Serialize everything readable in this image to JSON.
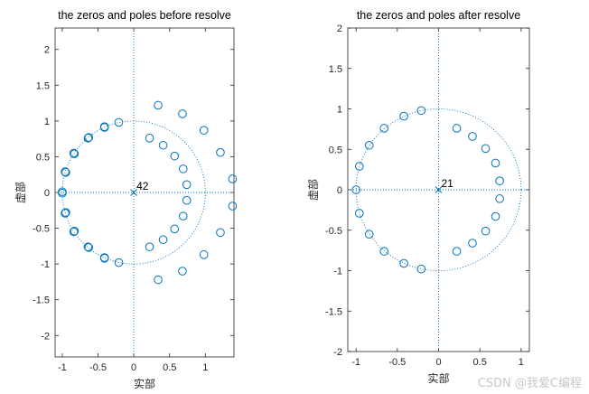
{
  "chart_data": [
    {
      "type": "scatter",
      "title": "the zeros and poles before resolve",
      "xlabel": "实部",
      "ylabel": "虚部",
      "xlim": [
        -1.1,
        1.4
      ],
      "ylim": [
        -2.3,
        2.3
      ],
      "xticks": [
        -1,
        -0.5,
        0,
        0.5,
        1
      ],
      "yticks": [
        -2,
        -1.5,
        -1,
        -0.5,
        0,
        0.5,
        1,
        1.5,
        2
      ],
      "unit_circle": true,
      "zeros": [
        [
          1.38,
          0.19
        ],
        [
          1.21,
          0.56
        ],
        [
          0.98,
          0.87
        ],
        [
          0.68,
          1.1
        ],
        [
          0.34,
          1.22
        ],
        [
          1.38,
          -0.19
        ],
        [
          1.21,
          -0.56
        ],
        [
          0.98,
          -0.87
        ],
        [
          0.68,
          -1.1
        ],
        [
          0.34,
          -1.22
        ],
        [
          0.22,
          0.76
        ],
        [
          0.41,
          0.66
        ],
        [
          0.57,
          0.51
        ],
        [
          0.69,
          0.33
        ],
        [
          0.74,
          0.11
        ],
        [
          0.22,
          -0.76
        ],
        [
          0.41,
          -0.66
        ],
        [
          0.57,
          -0.51
        ],
        [
          0.69,
          -0.33
        ],
        [
          0.74,
          -0.11
        ],
        [
          -0.21,
          0.98
        ],
        [
          -0.41,
          0.91
        ],
        [
          -0.41,
          0.92
        ],
        [
          -0.63,
          0.77
        ],
        [
          -0.64,
          0.76
        ],
        [
          -0.84,
          0.55
        ],
        [
          -0.83,
          0.54
        ],
        [
          -0.96,
          0.29
        ],
        [
          -0.95,
          0.28
        ],
        [
          -1.0,
          0.01
        ],
        [
          -1.0,
          -0.01
        ],
        [
          -0.21,
          -0.98
        ],
        [
          -0.41,
          -0.91
        ],
        [
          -0.41,
          -0.92
        ],
        [
          -0.63,
          -0.77
        ],
        [
          -0.64,
          -0.76
        ],
        [
          -0.84,
          -0.55
        ],
        [
          -0.83,
          -0.54
        ],
        [
          -0.96,
          -0.29
        ],
        [
          -0.95,
          -0.28
        ]
      ],
      "poles": [
        [
          0,
          0
        ]
      ],
      "pole_label": "42"
    },
    {
      "type": "scatter",
      "title": "the zeros and poles after resolve",
      "xlabel": "实部",
      "ylabel": "虚部",
      "xlim": [
        -1.1,
        1.1
      ],
      "ylim": [
        -2,
        2
      ],
      "xticks": [
        -1,
        -0.5,
        0,
        0.5,
        1
      ],
      "yticks": [
        -2,
        -1.5,
        -1,
        -0.5,
        0,
        0.5,
        1,
        1.5,
        2
      ],
      "unit_circle": true,
      "zeros": [
        [
          -0.21,
          0.98
        ],
        [
          -0.42,
          0.91
        ],
        [
          -0.66,
          0.76
        ],
        [
          -0.84,
          0.55
        ],
        [
          -0.96,
          0.29
        ],
        [
          -1.0,
          0.0
        ],
        [
          -0.21,
          -0.98
        ],
        [
          -0.42,
          -0.91
        ],
        [
          -0.66,
          -0.76
        ],
        [
          -0.84,
          -0.55
        ],
        [
          -0.96,
          -0.29
        ],
        [
          0.22,
          0.76
        ],
        [
          0.41,
          0.66
        ],
        [
          0.57,
          0.51
        ],
        [
          0.69,
          0.33
        ],
        [
          0.74,
          0.11
        ],
        [
          0.22,
          -0.76
        ],
        [
          0.41,
          -0.66
        ],
        [
          0.57,
          -0.51
        ],
        [
          0.69,
          -0.33
        ],
        [
          0.74,
          -0.11
        ]
      ],
      "poles": [
        [
          0,
          0
        ]
      ],
      "pole_label": "21"
    }
  ],
  "watermark": "CSDN @我爱C编程",
  "colors": {
    "marker": "#0072bd",
    "axis": "#262626"
  }
}
